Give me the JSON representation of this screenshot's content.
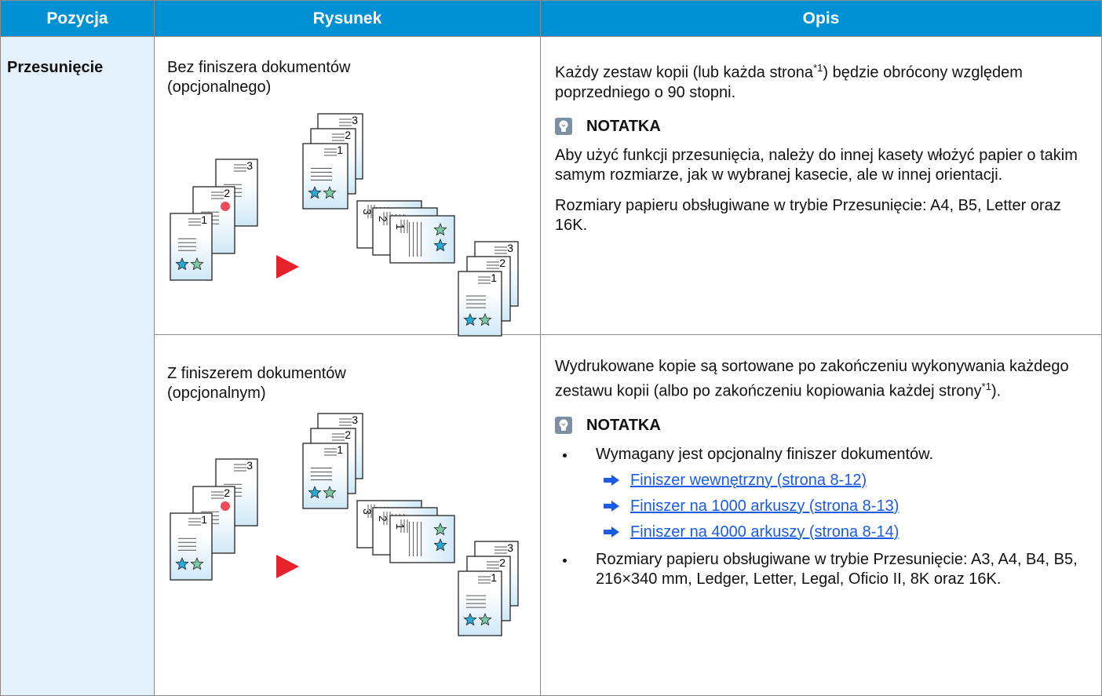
{
  "table": {
    "headers": [
      "Pozycja",
      "Rysunek",
      "Opis"
    ],
    "item": "Przesunięcie",
    "rows": [
      {
        "caption": [
          "Bez finiszera dokumentów",
          "(opcjonalnego)"
        ],
        "description": {
          "before": "Każdy zestaw kopii (lub każda strona",
          "sup": "*1",
          "after": ") będzie obrócony względem poprzedniego o 90 stopni."
        },
        "note": {
          "title": "NOTATKA",
          "paragraphs": [
            "Aby użyć funkcji przesunięcia, należy do innej kasety włożyć papier o takim samym rozmiarze, jak w wybranej kasecie, ale w innej orientacji.",
            "Rozmiary papieru obsługiwane w trybie Przesunięcie: A4, B5, Letter oraz 16K."
          ]
        }
      },
      {
        "caption": [
          "Z finiszerem dokumentów",
          "(opcjonalnym)"
        ],
        "description": {
          "before": "Wydrukowane kopie są sortowane po zakończeniu wykonywania każdego zestawu kopii (albo po zakończeniu kopiowania każdej strony",
          "sup": "*1",
          "after": ")."
        },
        "note": {
          "title": "NOTATKA",
          "bullets": [
            {
              "text": "Wymagany jest opcjonalny finiszer dokumentów.",
              "links": [
                "Finiszer wewnętrzny (strona 8-12)",
                "Finiszer na 1000 arkuszy (strona 8-13)",
                "Finiszer na 4000 arkuszy (strona 8-14)"
              ]
            },
            {
              "text": "Rozmiary papieru obsługiwane w trybie Przesunięcie: A3, A4, B4, B5, 216×340 mm, Ledger, Letter, Legal, Oficio II, 8K oraz 16K."
            }
          ]
        }
      }
    ],
    "figure": {
      "page_labels": [
        "1",
        "2",
        "3"
      ]
    }
  }
}
